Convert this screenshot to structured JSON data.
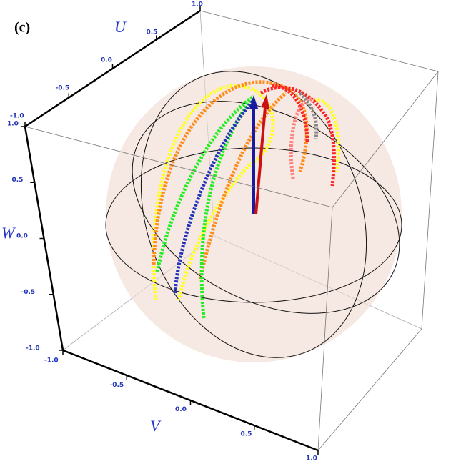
{
  "chart_data": {
    "type": "bloch-sphere",
    "title": "(c)",
    "u_label": "U",
    "w_label": "W",
    "v_label": "V",
    "ulim": [
      -1,
      1
    ],
    "wlim": [
      -1,
      1
    ],
    "vlim": [
      -1,
      1
    ],
    "uticks": [
      {
        "value": -1,
        "label": "-1.0"
      },
      {
        "value": -0.5,
        "label": "-0.5"
      },
      {
        "value": 0,
        "label": "0.0"
      },
      {
        "value": 0.5,
        "label": "0.5"
      },
      {
        "value": 1,
        "label": "1.0"
      }
    ],
    "wticks": [
      {
        "value": -1,
        "label": "-1.0"
      },
      {
        "value": -0.5,
        "label": "-0.5"
      },
      {
        "value": 0,
        "label": "0.0"
      },
      {
        "value": 0.5,
        "label": "0.5"
      },
      {
        "value": 1,
        "label": "1.0"
      }
    ],
    "vticks": [
      {
        "value": -1,
        "label": "-1.0"
      },
      {
        "value": -0.5,
        "label": "-0.5"
      },
      {
        "value": 0,
        "label": "0.0"
      },
      {
        "value": 0.5,
        "label": "0.5"
      },
      {
        "value": 1,
        "label": "1.0"
      }
    ]
  }
}
